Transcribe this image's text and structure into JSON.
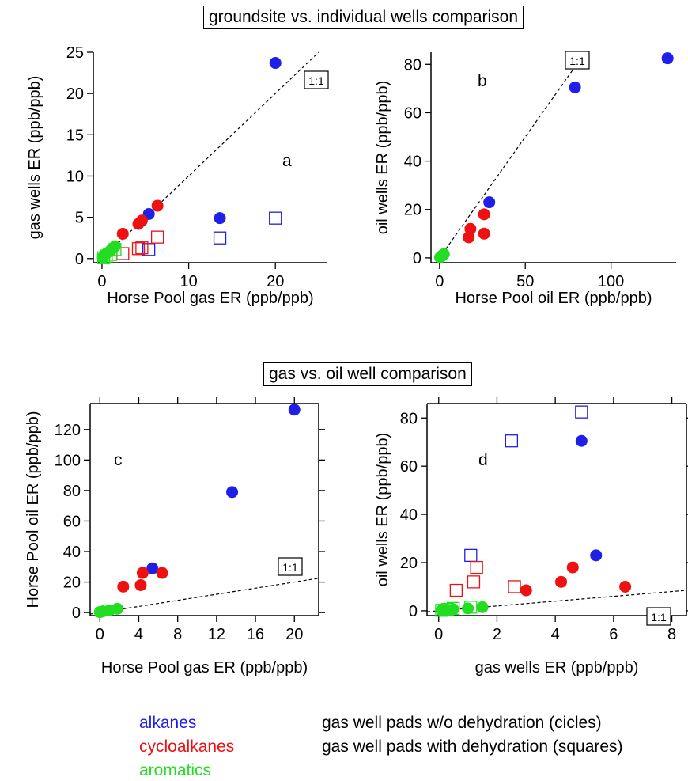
{
  "section_titles": {
    "top": "groundsite vs. individual wells comparison",
    "bottom": "gas vs. oil well comparison"
  },
  "legend": {
    "colors": [
      {
        "label": "alkanes",
        "color": "#1f1fe8"
      },
      {
        "label": "cycloalkanes",
        "color": "#ee1111"
      },
      {
        "label": "aromatics",
        "color": "#22dd22"
      }
    ],
    "markers": [
      {
        "label": "gas well pads w/o dehydration (cicles)",
        "shape": "circle"
      },
      {
        "label": "gas well pads with dehydration (squares)",
        "shape": "square"
      }
    ]
  },
  "colors": {
    "alkanes": "#1f1fe8",
    "cycloalkanes": "#ee1111",
    "aromatics": "#22dd22"
  },
  "chart_data": [
    {
      "type": "scatter",
      "panel_label": "a",
      "xlabel": "Horse Pool gas ER (ppb/ppb)",
      "ylabel": "gas wells ER (ppb/ppb)",
      "xlim": [
        -1,
        26
      ],
      "ylim": [
        -0.5,
        25
      ],
      "xticks": [
        0,
        10,
        20
      ],
      "yticks": [
        0,
        5,
        10,
        15,
        20,
        25
      ],
      "grid": false,
      "reference_line": {
        "label": "1:1",
        "slope": 1
      },
      "points": [
        {
          "x": 20.0,
          "y": 23.7,
          "group": "alkanes",
          "marker": "circle"
        },
        {
          "x": 5.4,
          "y": 5.4,
          "group": "alkanes",
          "marker": "circle"
        },
        {
          "x": 13.6,
          "y": 4.9,
          "group": "alkanes",
          "marker": "circle"
        },
        {
          "x": 20.0,
          "y": 4.9,
          "group": "alkanes",
          "marker": "square"
        },
        {
          "x": 13.6,
          "y": 2.5,
          "group": "alkanes",
          "marker": "square"
        },
        {
          "x": 5.4,
          "y": 1.1,
          "group": "alkanes",
          "marker": "square"
        },
        {
          "x": 6.4,
          "y": 6.4,
          "group": "cycloalkanes",
          "marker": "circle"
        },
        {
          "x": 4.6,
          "y": 4.6,
          "group": "cycloalkanes",
          "marker": "circle"
        },
        {
          "x": 4.2,
          "y": 4.2,
          "group": "cycloalkanes",
          "marker": "circle"
        },
        {
          "x": 2.4,
          "y": 3.0,
          "group": "cycloalkanes",
          "marker": "circle"
        },
        {
          "x": 6.4,
          "y": 2.6,
          "group": "cycloalkanes",
          "marker": "square"
        },
        {
          "x": 4.6,
          "y": 1.3,
          "group": "cycloalkanes",
          "marker": "square"
        },
        {
          "x": 4.2,
          "y": 1.2,
          "group": "cycloalkanes",
          "marker": "square"
        },
        {
          "x": 2.4,
          "y": 0.6,
          "group": "cycloalkanes",
          "marker": "square"
        },
        {
          "x": 1.5,
          "y": 1.5,
          "group": "aromatics",
          "marker": "circle"
        },
        {
          "x": 1.0,
          "y": 1.0,
          "group": "aromatics",
          "marker": "circle"
        },
        {
          "x": 0.5,
          "y": 0.6,
          "group": "aromatics",
          "marker": "circle"
        },
        {
          "x": 0.2,
          "y": 0.3,
          "group": "aromatics",
          "marker": "circle"
        },
        {
          "x": 0.1,
          "y": 0.1,
          "group": "aromatics",
          "marker": "circle"
        },
        {
          "x": 1.5,
          "y": 1.1,
          "group": "aromatics",
          "marker": "square"
        },
        {
          "x": 1.0,
          "y": 0.5,
          "group": "aromatics",
          "marker": "square"
        },
        {
          "x": 0.5,
          "y": 0.3,
          "group": "aromatics",
          "marker": "square"
        },
        {
          "x": 0.2,
          "y": 0.1,
          "group": "aromatics",
          "marker": "square"
        }
      ]
    },
    {
      "type": "scatter",
      "panel_label": "b",
      "xlabel": "Horse Pool oil ER (ppb/ppb)",
      "ylabel": "oil wells ER (ppb/ppb)",
      "xlim": [
        -5,
        138
      ],
      "ylim": [
        -2,
        85
      ],
      "xticks": [
        0,
        50,
        100
      ],
      "yticks": [
        0,
        20,
        40,
        60,
        80
      ],
      "grid": false,
      "reference_line": {
        "label": "1:1",
        "slope": 1
      },
      "points": [
        {
          "x": 133,
          "y": 82.5,
          "group": "alkanes",
          "marker": "circle"
        },
        {
          "x": 79,
          "y": 70.5,
          "group": "alkanes",
          "marker": "circle"
        },
        {
          "x": 29,
          "y": 23.0,
          "group": "alkanes",
          "marker": "circle"
        },
        {
          "x": 26,
          "y": 18.0,
          "group": "cycloalkanes",
          "marker": "circle"
        },
        {
          "x": 18,
          "y": 12.0,
          "group": "cycloalkanes",
          "marker": "circle"
        },
        {
          "x": 26,
          "y": 10.0,
          "group": "cycloalkanes",
          "marker": "circle"
        },
        {
          "x": 17,
          "y": 8.5,
          "group": "cycloalkanes",
          "marker": "circle"
        },
        {
          "x": 2.5,
          "y": 1.5,
          "group": "aromatics",
          "marker": "circle"
        },
        {
          "x": 1.5,
          "y": 1.0,
          "group": "aromatics",
          "marker": "circle"
        },
        {
          "x": 0.8,
          "y": 0.5,
          "group": "aromatics",
          "marker": "circle"
        },
        {
          "x": 0.3,
          "y": 0.2,
          "group": "aromatics",
          "marker": "circle"
        }
      ]
    },
    {
      "type": "scatter",
      "panel_label": "c",
      "xlabel": "Horse Pool gas ER (ppb/ppb)",
      "ylabel": "Horse Pool oil ER (ppb/ppb)",
      "xlim": [
        -1,
        22.5
      ],
      "ylim": [
        -2,
        137
      ],
      "xticks": [
        0,
        4,
        8,
        12,
        16,
        20
      ],
      "yticks": [
        0,
        20,
        40,
        60,
        80,
        100,
        120
      ],
      "grid": false,
      "reference_line": {
        "label": "1:1",
        "slope": 1
      },
      "points": [
        {
          "x": 20.0,
          "y": 133,
          "group": "alkanes",
          "marker": "circle"
        },
        {
          "x": 13.6,
          "y": 79,
          "group": "alkanes",
          "marker": "circle"
        },
        {
          "x": 5.4,
          "y": 29,
          "group": "alkanes",
          "marker": "circle"
        },
        {
          "x": 6.4,
          "y": 26,
          "group": "cycloalkanes",
          "marker": "circle"
        },
        {
          "x": 4.4,
          "y": 26,
          "group": "cycloalkanes",
          "marker": "circle"
        },
        {
          "x": 4.2,
          "y": 18,
          "group": "cycloalkanes",
          "marker": "circle"
        },
        {
          "x": 2.4,
          "y": 17,
          "group": "cycloalkanes",
          "marker": "circle"
        },
        {
          "x": 1.8,
          "y": 2.5,
          "group": "aromatics",
          "marker": "circle"
        },
        {
          "x": 1.0,
          "y": 1.5,
          "group": "aromatics",
          "marker": "circle"
        },
        {
          "x": 0.3,
          "y": 0.8,
          "group": "aromatics",
          "marker": "circle"
        },
        {
          "x": 0.0,
          "y": 0.3,
          "group": "aromatics",
          "marker": "circle"
        }
      ]
    },
    {
      "type": "scatter",
      "panel_label": "d",
      "xlabel": "gas wells ER (ppb/ppb)",
      "ylabel": "oil wells ER (ppb/ppb)",
      "xlim": [
        -0.4,
        8.5
      ],
      "ylim": [
        -2,
        86
      ],
      "xticks": [
        0,
        2,
        4,
        6,
        8
      ],
      "yticks": [
        0,
        20,
        40,
        60,
        80
      ],
      "grid": false,
      "reference_line": {
        "label": "1:1",
        "slope": 1
      },
      "points": [
        {
          "x": 4.9,
          "y": 70.5,
          "group": "alkanes",
          "marker": "circle"
        },
        {
          "x": 5.4,
          "y": 23.0,
          "group": "alkanes",
          "marker": "circle"
        },
        {
          "x": 4.9,
          "y": 82.5,
          "group": "alkanes",
          "marker": "square"
        },
        {
          "x": 2.5,
          "y": 70.5,
          "group": "alkanes",
          "marker": "square"
        },
        {
          "x": 1.1,
          "y": 23.0,
          "group": "alkanes",
          "marker": "square"
        },
        {
          "x": 6.4,
          "y": 10.0,
          "group": "cycloalkanes",
          "marker": "circle"
        },
        {
          "x": 4.6,
          "y": 18.0,
          "group": "cycloalkanes",
          "marker": "circle"
        },
        {
          "x": 4.2,
          "y": 12.0,
          "group": "cycloalkanes",
          "marker": "circle"
        },
        {
          "x": 3.0,
          "y": 8.5,
          "group": "cycloalkanes",
          "marker": "circle"
        },
        {
          "x": 2.6,
          "y": 10.0,
          "group": "cycloalkanes",
          "marker": "square"
        },
        {
          "x": 1.3,
          "y": 18.0,
          "group": "cycloalkanes",
          "marker": "square"
        },
        {
          "x": 1.2,
          "y": 12.0,
          "group": "cycloalkanes",
          "marker": "square"
        },
        {
          "x": 0.6,
          "y": 8.5,
          "group": "cycloalkanes",
          "marker": "square"
        },
        {
          "x": 1.5,
          "y": 1.5,
          "group": "aromatics",
          "marker": "circle"
        },
        {
          "x": 1.0,
          "y": 1.0,
          "group": "aromatics",
          "marker": "circle"
        },
        {
          "x": 0.5,
          "y": 0.6,
          "group": "aromatics",
          "marker": "circle"
        },
        {
          "x": 0.3,
          "y": 0.4,
          "group": "aromatics",
          "marker": "circle"
        },
        {
          "x": 0.1,
          "y": 0.2,
          "group": "aromatics",
          "marker": "circle"
        },
        {
          "x": 1.1,
          "y": 1.5,
          "group": "aromatics",
          "marker": "square"
        },
        {
          "x": 0.5,
          "y": 1.0,
          "group": "aromatics",
          "marker": "square"
        },
        {
          "x": 0.3,
          "y": 0.6,
          "group": "aromatics",
          "marker": "square"
        },
        {
          "x": 0.1,
          "y": 0.2,
          "group": "aromatics",
          "marker": "square"
        }
      ]
    }
  ]
}
